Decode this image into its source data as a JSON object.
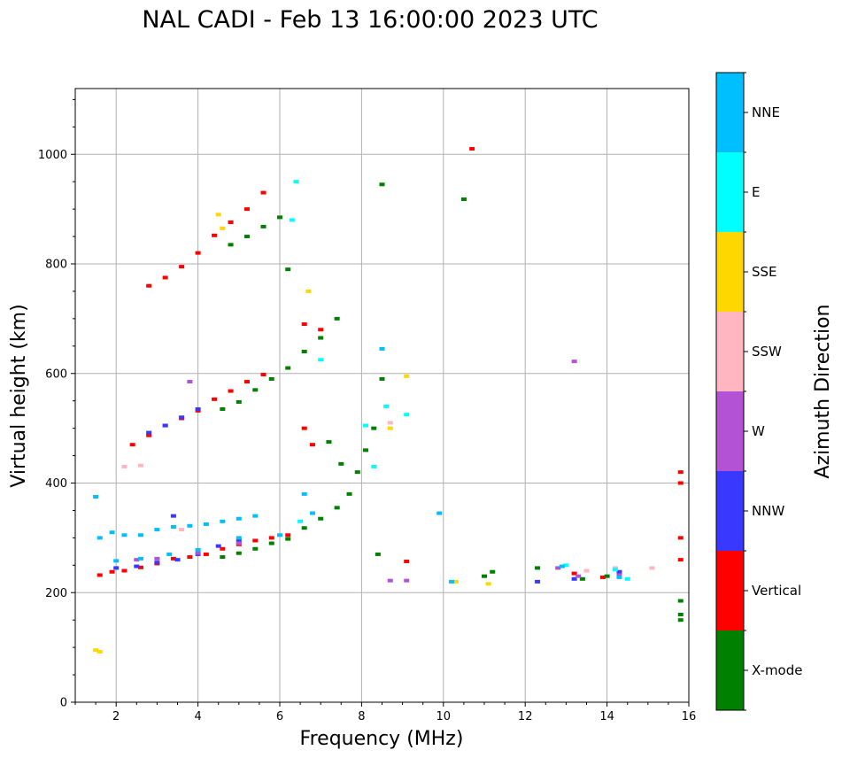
{
  "chart_data": {
    "type": "scatter",
    "title": "NAL CADI - Feb 13 16:00:00 2023 UTC",
    "xlabel": "Frequency (MHz)",
    "ylabel": "Virtual height (km)",
    "xlim": [
      1,
      16
    ],
    "ylim": [
      0,
      1120
    ],
    "xticks": [
      2,
      4,
      6,
      8,
      10,
      12,
      14,
      16
    ],
    "yticks": [
      0,
      200,
      400,
      600,
      800,
      1000
    ],
    "grid": true,
    "colorbar": {
      "label": "Azimuth Direction",
      "categories": [
        {
          "name": "X-mode",
          "color": "#008000"
        },
        {
          "name": "Vertical",
          "color": "#ff0000"
        },
        {
          "name": "NNW",
          "color": "#3838ff"
        },
        {
          "name": "W",
          "color": "#b452d6"
        },
        {
          "name": "SSW",
          "color": "#ffb6c1"
        },
        {
          "name": "SSE",
          "color": "#ffd700"
        },
        {
          "name": "E",
          "color": "#00ffff"
        },
        {
          "name": "NNE",
          "color": "#00bfff"
        }
      ]
    },
    "series": [
      {
        "name": "Vertical",
        "color": "#ff0000",
        "points": [
          [
            1.6,
            232
          ],
          [
            1.9,
            238
          ],
          [
            2.2,
            240
          ],
          [
            2.6,
            246
          ],
          [
            3.0,
            253
          ],
          [
            3.4,
            262
          ],
          [
            3.8,
            265
          ],
          [
            4.2,
            270
          ],
          [
            4.6,
            280
          ],
          [
            5.0,
            288
          ],
          [
            5.4,
            295
          ],
          [
            5.8,
            300
          ],
          [
            6.2,
            305
          ],
          [
            2.4,
            470
          ],
          [
            2.8,
            487
          ],
          [
            3.2,
            505
          ],
          [
            3.6,
            518
          ],
          [
            4.0,
            532
          ],
          [
            4.4,
            553
          ],
          [
            4.8,
            568
          ],
          [
            5.2,
            585
          ],
          [
            5.6,
            598
          ],
          [
            2.8,
            760
          ],
          [
            3.2,
            775
          ],
          [
            3.6,
            795
          ],
          [
            4.0,
            820
          ],
          [
            4.4,
            852
          ],
          [
            4.8,
            876
          ],
          [
            5.2,
            900
          ],
          [
            5.6,
            930
          ],
          [
            10.7,
            1010
          ],
          [
            9.1,
            257
          ],
          [
            13.2,
            235
          ],
          [
            13.9,
            228
          ],
          [
            15.8,
            420
          ],
          [
            15.8,
            400
          ],
          [
            15.8,
            300
          ],
          [
            15.8,
            260
          ],
          [
            6.6,
            500
          ],
          [
            6.8,
            470
          ],
          [
            6.6,
            690
          ],
          [
            7.0,
            680
          ]
        ]
      },
      {
        "name": "X-mode",
        "color": "#008000",
        "points": [
          [
            4.6,
            265
          ],
          [
            5.0,
            272
          ],
          [
            5.4,
            280
          ],
          [
            5.8,
            290
          ],
          [
            6.2,
            298
          ],
          [
            6.6,
            318
          ],
          [
            7.0,
            335
          ],
          [
            7.4,
            355
          ],
          [
            7.7,
            380
          ],
          [
            7.9,
            420
          ],
          [
            8.1,
            460
          ],
          [
            4.6,
            535
          ],
          [
            5.0,
            548
          ],
          [
            5.4,
            570
          ],
          [
            5.8,
            590
          ],
          [
            6.2,
            610
          ],
          [
            6.6,
            640
          ],
          [
            7.0,
            665
          ],
          [
            7.4,
            700
          ],
          [
            4.8,
            835
          ],
          [
            5.2,
            850
          ],
          [
            5.6,
            868
          ],
          [
            6.0,
            885
          ],
          [
            6.2,
            790
          ],
          [
            8.5,
            590
          ],
          [
            8.3,
            500
          ],
          [
            8.4,
            270
          ],
          [
            11.0,
            230
          ],
          [
            11.2,
            238
          ],
          [
            12.3,
            245
          ],
          [
            13.4,
            225
          ],
          [
            14.0,
            230
          ],
          [
            15.8,
            185
          ],
          [
            15.8,
            160
          ],
          [
            15.8,
            150
          ],
          [
            8.5,
            945
          ],
          [
            10.5,
            918
          ],
          [
            7.2,
            475
          ],
          [
            7.5,
            435
          ]
        ]
      },
      {
        "name": "NNW",
        "color": "#3838ff",
        "points": [
          [
            2.0,
            245
          ],
          [
            2.5,
            248
          ],
          [
            3.0,
            255
          ],
          [
            3.5,
            260
          ],
          [
            4.0,
            270
          ],
          [
            4.5,
            285
          ],
          [
            5.0,
            295
          ],
          [
            2.8,
            492
          ],
          [
            3.2,
            505
          ],
          [
            3.6,
            520
          ],
          [
            4.0,
            535
          ],
          [
            3.4,
            340
          ],
          [
            12.3,
            220
          ],
          [
            13.2,
            225
          ],
          [
            14.3,
            238
          ]
        ]
      },
      {
        "name": "W",
        "color": "#b452d6",
        "points": [
          [
            2.5,
            260
          ],
          [
            3.0,
            262
          ],
          [
            4.0,
            272
          ],
          [
            5.0,
            290
          ],
          [
            3.8,
            585
          ],
          [
            8.7,
            222
          ],
          [
            9.1,
            222
          ],
          [
            13.2,
            622
          ],
          [
            13.3,
            230
          ],
          [
            12.8,
            245
          ],
          [
            14.3,
            232
          ]
        ]
      },
      {
        "name": "SSW",
        "color": "#ffb6c1",
        "points": [
          [
            2.2,
            430
          ],
          [
            2.6,
            432
          ],
          [
            3.6,
            315
          ],
          [
            8.7,
            510
          ],
          [
            14.2,
            245
          ],
          [
            15.1,
            245
          ],
          [
            13.5,
            240
          ]
        ]
      },
      {
        "name": "SSE",
        "color": "#ffd700",
        "points": [
          [
            1.5,
            95
          ],
          [
            1.6,
            92
          ],
          [
            4.6,
            865
          ],
          [
            4.5,
            890
          ],
          [
            6.7,
            750
          ],
          [
            8.7,
            500
          ],
          [
            9.1,
            595
          ],
          [
            10.3,
            220
          ],
          [
            11.1,
            216
          ]
        ]
      },
      {
        "name": "E",
        "color": "#00ffff",
        "points": [
          [
            6.3,
            880
          ],
          [
            6.4,
            950
          ],
          [
            7.0,
            625
          ],
          [
            8.1,
            505
          ],
          [
            8.3,
            430
          ],
          [
            8.6,
            540
          ],
          [
            9.1,
            525
          ],
          [
            13.0,
            250
          ],
          [
            14.2,
            242
          ],
          [
            14.5,
            225
          ],
          [
            6.5,
            330
          ]
        ]
      },
      {
        "name": "NNE",
        "color": "#00bfff",
        "points": [
          [
            1.6,
            300
          ],
          [
            1.9,
            310
          ],
          [
            2.2,
            305
          ],
          [
            2.6,
            305
          ],
          [
            3.0,
            315
          ],
          [
            3.4,
            320
          ],
          [
            3.8,
            322
          ],
          [
            4.2,
            325
          ],
          [
            4.6,
            330
          ],
          [
            5.0,
            335
          ],
          [
            5.4,
            340
          ],
          [
            2.0,
            258
          ],
          [
            2.6,
            262
          ],
          [
            3.3,
            270
          ],
          [
            4.0,
            278
          ],
          [
            5.0,
            300
          ],
          [
            6.0,
            305
          ],
          [
            6.8,
            345
          ],
          [
            6.6,
            380
          ],
          [
            8.5,
            645
          ],
          [
            9.9,
            345
          ],
          [
            10.2,
            220
          ],
          [
            12.9,
            248
          ],
          [
            14.3,
            228
          ],
          [
            1.5,
            375
          ]
        ]
      }
    ]
  }
}
